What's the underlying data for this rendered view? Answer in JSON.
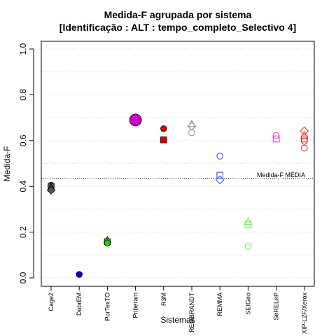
{
  "chart_data": {
    "type": "scatter",
    "title": "Medida-F agrupada por sistema",
    "subtitle": "[Identificação : ALT : tempo_completo_Selectivo 4]",
    "xlabel": "Sistemas",
    "ylabel": "Medida-F",
    "ylim": [
      0,
      1
    ],
    "yticks": [
      "0.0",
      "0.2",
      "0.4",
      "0.6",
      "0.8",
      "1.0"
    ],
    "grid": "horizontal dotted",
    "categories": [
      "Cage2",
      "DobrEM",
      "PorTexTO",
      "Priberam",
      "R3M",
      "REMBRANDT",
      "REMMA",
      "SEIGeo",
      "SeRELeP",
      "XIP-L2F/Xerox"
    ],
    "reference_line": {
      "label": "Medida-F MÉDIA",
      "value": 0.435
    },
    "series": [
      {
        "category": "Cage2",
        "color": "#555555",
        "points": [
          {
            "shape": "circle",
            "value": 0.405,
            "filled": true
          },
          {
            "shape": "square",
            "value": 0.4,
            "filled": true
          },
          {
            "shape": "triangle",
            "value": 0.395,
            "filled": true
          },
          {
            "shape": "diamond",
            "value": 0.383,
            "filled": true
          }
        ]
      },
      {
        "category": "DobrEM",
        "color": "#0000cc",
        "points": [
          {
            "shape": "circle",
            "value": 0.015,
            "filled": true
          }
        ]
      },
      {
        "category": "PorTexTO",
        "color": "#33cc00",
        "points": [
          {
            "shape": "triangle",
            "value": 0.165,
            "filled": true
          },
          {
            "shape": "square",
            "value": 0.158,
            "filled": true
          },
          {
            "shape": "circle",
            "value": 0.152,
            "filled": true
          }
        ]
      },
      {
        "category": "Priberam",
        "color": "#cc00cc",
        "points": [
          {
            "shape": "circle",
            "value": 0.69,
            "filled": true,
            "large": true
          }
        ]
      },
      {
        "category": "R3M",
        "color": "#cc0000",
        "points": [
          {
            "shape": "circle",
            "value": 0.652,
            "filled": true
          },
          {
            "shape": "square",
            "value": 0.603,
            "filled": true
          }
        ]
      },
      {
        "category": "REMBRANDT",
        "color": "#999999",
        "points": [
          {
            "shape": "triangle",
            "value": 0.672,
            "filled": false
          },
          {
            "shape": "diamond",
            "value": 0.663,
            "filled": false
          },
          {
            "shape": "circle",
            "value": 0.635,
            "filled": false
          }
        ]
      },
      {
        "category": "REMMA",
        "color": "#3355ee",
        "points": [
          {
            "shape": "circle",
            "value": 0.532,
            "filled": false
          },
          {
            "shape": "square",
            "value": 0.448,
            "filled": false
          },
          {
            "shape": "diamond",
            "value": 0.428,
            "filled": false
          }
        ]
      },
      {
        "category": "SEIGeo",
        "color": "#66ee44",
        "points": [
          {
            "shape": "triangle",
            "value": 0.245,
            "filled": false
          },
          {
            "shape": "square",
            "value": 0.232,
            "filled": false
          },
          {
            "shape": "circle",
            "value": 0.138,
            "filled": false
          }
        ]
      },
      {
        "category": "SeRELeP",
        "color": "#dd44dd",
        "points": [
          {
            "shape": "circle",
            "value": 0.622,
            "filled": false
          },
          {
            "shape": "square",
            "value": 0.607,
            "filled": false
          }
        ]
      },
      {
        "category": "XIP-L2F/Xerox",
        "color": "#ee3333",
        "points": [
          {
            "shape": "diamond",
            "value": 0.642,
            "filled": false
          },
          {
            "shape": "triangle",
            "value": 0.622,
            "filled": false
          },
          {
            "shape": "square",
            "value": 0.607,
            "filled": false
          },
          {
            "shape": "circle",
            "value": 0.597,
            "filled": false
          },
          {
            "shape": "circle",
            "value": 0.567,
            "filled": false
          }
        ]
      }
    ]
  }
}
